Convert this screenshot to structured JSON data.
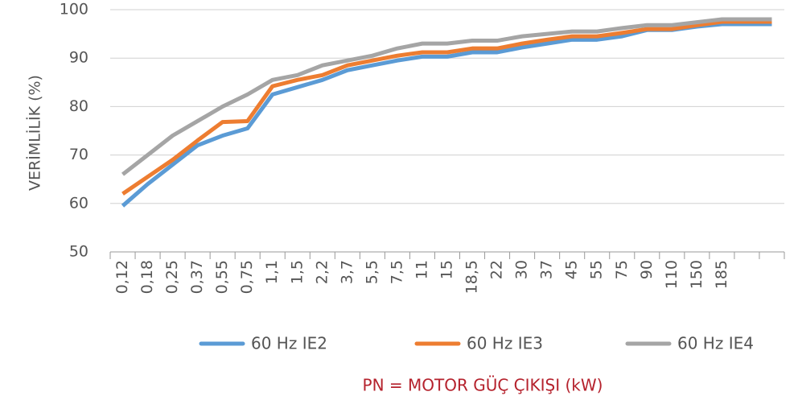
{
  "chart_data": {
    "type": "line",
    "ylabel": "VERİMLİLİK (%)",
    "xlabel": "PN = MOTOR GÜÇ ÇIKIŞI (kW)",
    "categories": [
      "0,12",
      "0,18",
      "0,25",
      "0,37",
      "0,55",
      "0,75",
      "1,1",
      "1,5",
      "2,2",
      "3,7",
      "5,5",
      "7,5",
      "11",
      "15",
      "18,5",
      "22",
      "30",
      "37",
      "45",
      "55",
      "75",
      "90",
      "110",
      "150",
      "185",
      null,
      null
    ],
    "series": [
      {
        "name": "60 Hz IE2",
        "color": "#5b9bd5",
        "values": [
          59.5,
          64,
          68,
          72,
          74,
          75.5,
          82.5,
          84,
          85.5,
          87.5,
          88.5,
          89.5,
          90.3,
          90.3,
          91.2,
          91.2,
          92.2,
          93,
          93.8,
          93.8,
          94.5,
          95.8,
          95.8,
          96.5,
          97,
          97,
          97
        ]
      },
      {
        "name": "60 Hz IE3",
        "color": "#ed7d31",
        "values": [
          62,
          65.5,
          69,
          73,
          76.8,
          77,
          84.2,
          85.5,
          86.5,
          88.5,
          89.5,
          90.5,
          91.2,
          91.2,
          92,
          92,
          93,
          93.8,
          94.5,
          94.5,
          95.2,
          96,
          96,
          96.8,
          97.5,
          97.5,
          97.5
        ]
      },
      {
        "name": "60 Hz IE4",
        "color": "#a5a5a5",
        "values": [
          66,
          70,
          74,
          77,
          80,
          82.5,
          85.5,
          86.5,
          88.5,
          89.5,
          90.5,
          92,
          93,
          93,
          93.6,
          93.6,
          94.5,
          95,
          95.5,
          95.5,
          96.2,
          96.8,
          96.8,
          97.4,
          98,
          98,
          98
        ]
      }
    ],
    "ylim": [
      50,
      100
    ],
    "yticks": [
      50,
      60,
      70,
      80,
      90,
      100
    ],
    "grid": true,
    "legend": "bottom"
  }
}
